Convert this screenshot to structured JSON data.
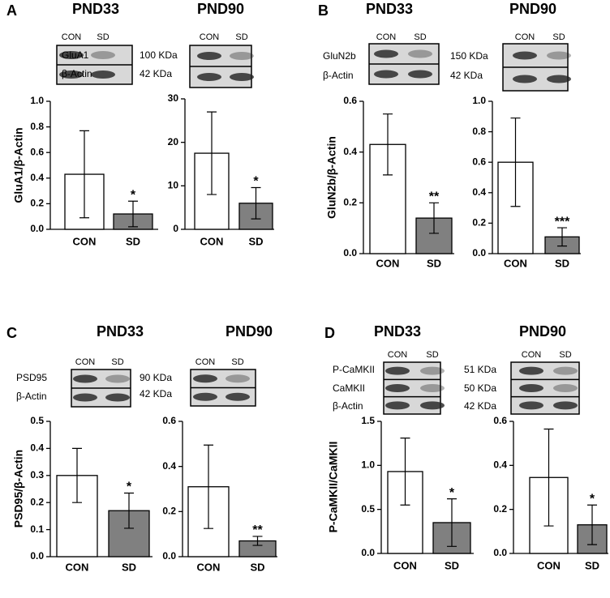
{
  "chart_data": [
    {
      "type": "bar",
      "title": "PND33",
      "ylabel": "GluA1/β-Actin",
      "categories": [
        "CON",
        "SD"
      ],
      "values": [
        0.43,
        0.12
      ],
      "errors": [
        0.34,
        0.1
      ],
      "significance": [
        null,
        "*"
      ],
      "colors": [
        "#ffffff",
        "#808080"
      ],
      "ylim": [
        0,
        1
      ],
      "yticks": [
        {
          "value": 0,
          "label": "0.0"
        },
        0.2,
        0.4,
        0.6,
        0.8,
        {
          "value": 1,
          "label": "1.0"
        }
      ]
    },
    {
      "type": "bar",
      "title": "PND90",
      "categories": [
        "CON",
        "SD"
      ],
      "values": [
        17.5,
        6
      ],
      "errors": [
        9.5,
        3.6
      ],
      "significance": [
        null,
        "*"
      ],
      "colors": [
        "#ffffff",
        "#808080"
      ],
      "ylim": [
        0,
        30
      ],
      "yticks": [
        0,
        10,
        20,
        30
      ]
    },
    {
      "type": "bar",
      "title": "PND33",
      "ylabel": "GluN2b/β-Actin",
      "categories": [
        "CON",
        "SD"
      ],
      "values": [
        0.43,
        0.14
      ],
      "errors": [
        0.12,
        0.06
      ],
      "significance": [
        null,
        "**"
      ],
      "colors": [
        "#ffffff",
        "#808080"
      ],
      "ylim": [
        0,
        0.6
      ],
      "yticks": [
        {
          "value": 0,
          "label": "0.0"
        },
        0.2,
        0.4,
        0.6
      ]
    },
    {
      "type": "bar",
      "title": "PND90",
      "categories": [
        "CON",
        "SD"
      ],
      "values": [
        0.6,
        0.11
      ],
      "errors": [
        0.29,
        0.06
      ],
      "significance": [
        null,
        "***"
      ],
      "colors": [
        "#ffffff",
        "#808080"
      ],
      "ylim": [
        0,
        1
      ],
      "yticks": [
        {
          "value": 0,
          "label": "0.0"
        },
        0.2,
        0.4,
        0.6,
        0.8,
        {
          "value": 1,
          "label": "1.0"
        }
      ]
    },
    {
      "type": "bar",
      "title": "PND33",
      "ylabel": "PSD95/β-Actin",
      "categories": [
        "CON",
        "SD"
      ],
      "values": [
        0.3,
        0.17
      ],
      "errors": [
        0.1,
        0.065
      ],
      "significance": [
        null,
        "*"
      ],
      "colors": [
        "#ffffff",
        "#808080"
      ],
      "ylim": [
        0,
        0.5
      ],
      "yticks": [
        {
          "value": 0,
          "label": "0.0"
        },
        0.1,
        0.2,
        0.3,
        0.4,
        0.5
      ]
    },
    {
      "type": "bar",
      "title": "PND90",
      "categories": [
        "CON",
        "SD"
      ],
      "values": [
        0.31,
        0.07
      ],
      "errors": [
        0.185,
        0.02
      ],
      "significance": [
        null,
        "**"
      ],
      "colors": [
        "#ffffff",
        "#808080"
      ],
      "ylim": [
        0,
        0.6
      ],
      "yticks": [
        {
          "value": 0,
          "label": "0.0"
        },
        0.2,
        0.4,
        0.6
      ]
    },
    {
      "type": "bar",
      "title": "PND33",
      "ylabel": "P-CaMKII/CaMKII",
      "categories": [
        "CON",
        "SD"
      ],
      "values": [
        0.93,
        0.35
      ],
      "errors": [
        0.38,
        0.27
      ],
      "significance": [
        null,
        "*"
      ],
      "colors": [
        "#ffffff",
        "#808080"
      ],
      "ylim": [
        0,
        1.5
      ],
      "yticks": [
        {
          "value": 0,
          "label": "0.0"
        },
        0.5,
        {
          "value": 1,
          "label": "1.0"
        },
        1.5
      ]
    },
    {
      "type": "bar",
      "title": "PND90",
      "categories": [
        "CON",
        "SD"
      ],
      "values": [
        0.345,
        0.13
      ],
      "errors": [
        0.22,
        0.09
      ],
      "significance": [
        null,
        "*"
      ],
      "colors": [
        "#ffffff",
        "#808080"
      ],
      "ylim": [
        0,
        0.6
      ],
      "yticks": [
        {
          "value": 0,
          "label": "0.0"
        },
        0.2,
        0.4,
        0.6
      ]
    }
  ],
  "panels": [
    {
      "label": "A",
      "lanes": [
        "CON",
        "SD"
      ],
      "proteins": [
        "GluA1",
        "β-Actin"
      ],
      "sizes": [
        "100 KDa",
        "42 KDa"
      ]
    },
    {
      "label": "B",
      "lanes": [
        "CON",
        "SD"
      ],
      "proteins": [
        "GluN2b",
        "β-Actin"
      ],
      "sizes": [
        "150 KDa",
        "42 KDa"
      ]
    },
    {
      "label": "C",
      "lanes": [
        "CON",
        "SD"
      ],
      "proteins": [
        "PSD95",
        "β-Actin"
      ],
      "sizes": [
        "90 KDa",
        "42 KDa"
      ]
    },
    {
      "label": "D",
      "lanes": [
        "CON",
        "SD"
      ],
      "proteins": [
        "P-CaMKII",
        "CaMKII",
        "β-Actin"
      ],
      "sizes": [
        "51 KDa",
        "50 KDa",
        "42 KDa"
      ]
    }
  ]
}
